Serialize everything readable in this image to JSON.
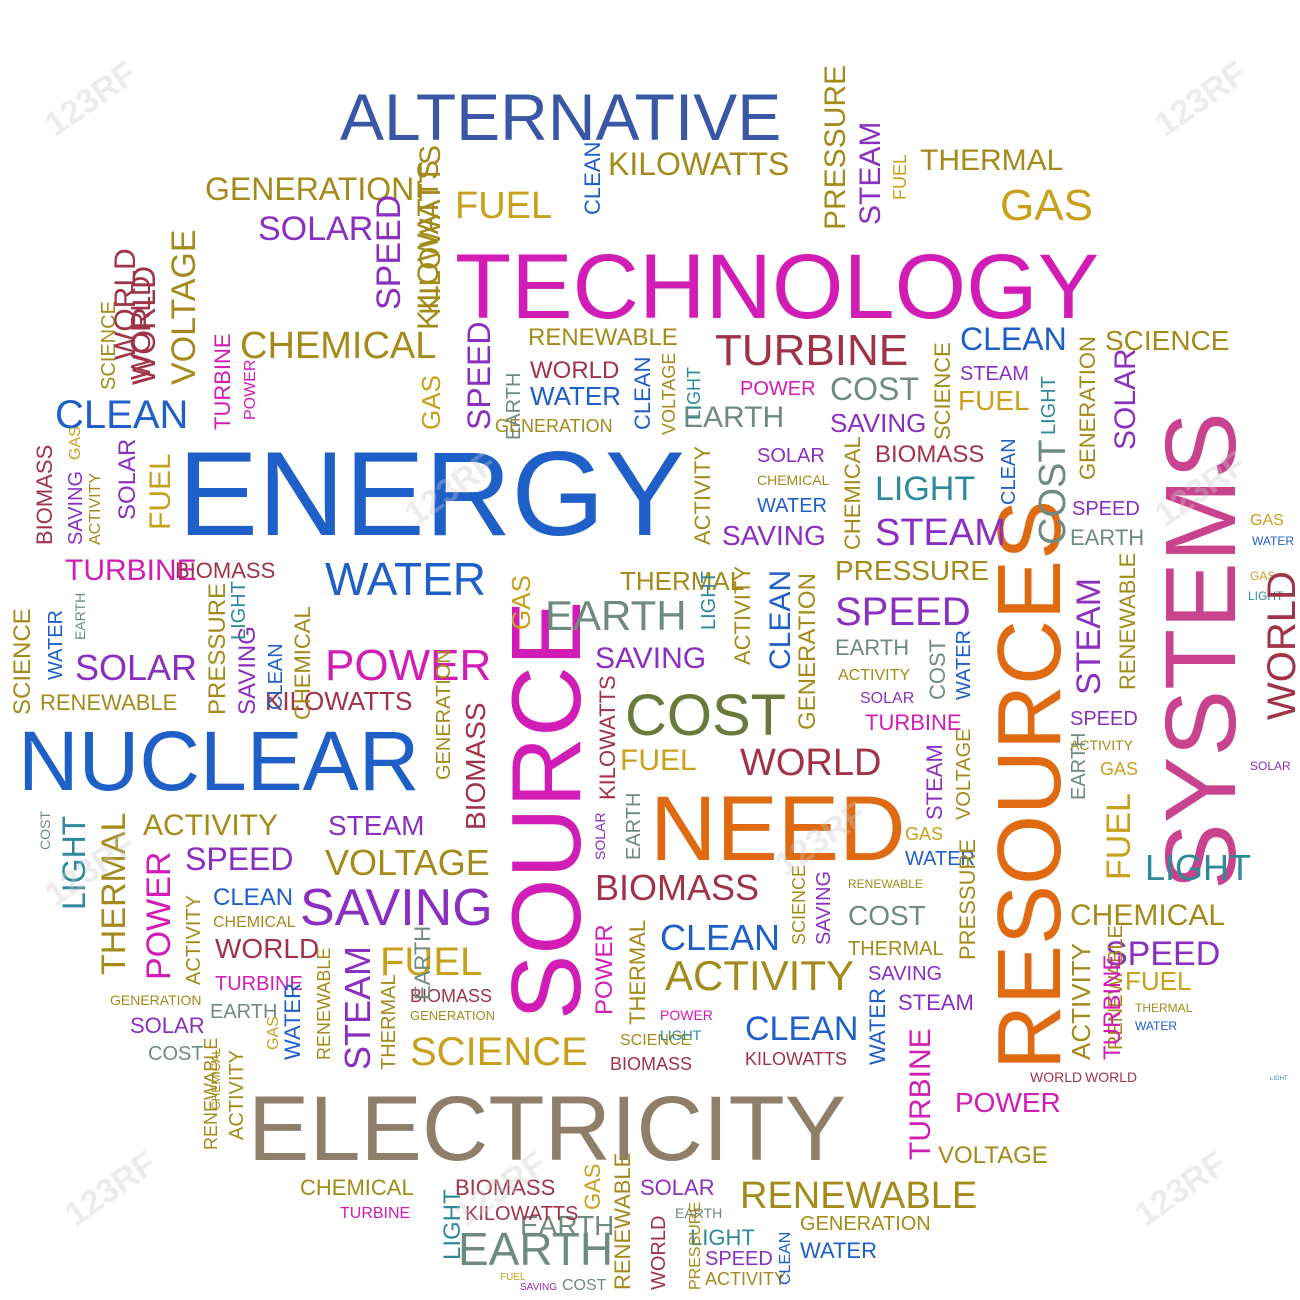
{
  "palette": {
    "blue": "#1f5fc8",
    "navy": "#3a57a6",
    "magenta": "#d11cb5",
    "purple": "#8a2fc0",
    "orange": "#e06a12",
    "brown": "#8f7f6a",
    "olive": "#a38a1a",
    "gold": "#c9a01c",
    "maroon": "#a03348",
    "violet": "#b2467e",
    "teal": "#2e8a9a",
    "gray": "#6f8a80",
    "pink": "#c8428e",
    "green": "#6a7a3a"
  },
  "words": [
    "ENERGY",
    "TECHNOLOGY",
    "ALTERNATIVE",
    "NUCLEAR",
    "ELECTRICITY",
    "SOURCE",
    "SYSTEMS",
    "RESOURCES",
    "NEED",
    "COST",
    "WATER",
    "POWER",
    "SPEED",
    "EARTH",
    "STEAM",
    "CLEAN",
    "SAVING",
    "VOLTAGE",
    "CHEMICAL",
    "TURBINE",
    "RENEWABLE",
    "BIOMASS",
    "SOLAR",
    "GAS",
    "FUEL",
    "KILOWATTS",
    "GENERATION",
    "THERMAL",
    "PRESSURE",
    "SCIENCE",
    "ACTIVITY",
    "WORLD",
    "LIGHT"
  ],
  "watermark": "123RF"
}
